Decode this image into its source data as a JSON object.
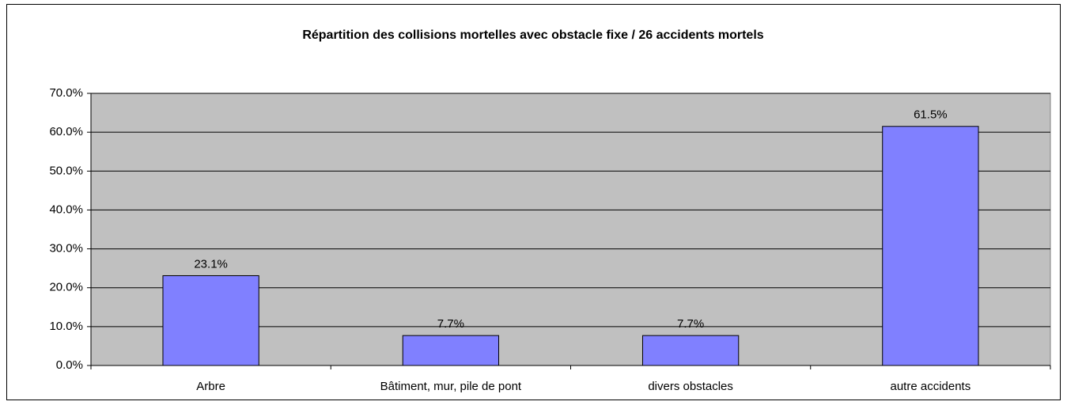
{
  "chart_data": {
    "type": "bar",
    "title": "Répartition  des collisions mortelles avec obstacle fixe / 26 accidents mortels",
    "categories": [
      "Arbre",
      "Bâtiment, mur, pile de pont",
      "divers obstacles",
      "autre accidents"
    ],
    "values": [
      23.1,
      7.7,
      7.7,
      61.5
    ],
    "value_labels": [
      "23.1%",
      "7.7%",
      "7.7%",
      "61.5%"
    ],
    "color": "#8080ff",
    "ylim": [
      0,
      70
    ],
    "yticks": [
      {
        "value": 0,
        "label": "0.0%"
      },
      {
        "value": 10,
        "label": "10.0%"
      },
      {
        "value": 20,
        "label": "20.0%"
      },
      {
        "value": 30,
        "label": "30.0%"
      },
      {
        "value": 40,
        "label": "40.0%"
      },
      {
        "value": 50,
        "label": "50.0%"
      },
      {
        "value": 60,
        "label": "60.0%"
      },
      {
        "value": 70,
        "label": "70.0%"
      }
    ],
    "grid": true
  }
}
